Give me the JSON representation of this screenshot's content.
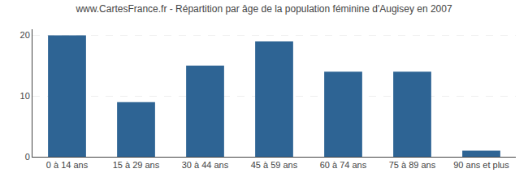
{
  "chart_data": {
    "type": "bar",
    "title": "www.CartesFrance.fr - Répartition par âge de la population féminine d'Augisey en 2007",
    "categories": [
      "0 à 14 ans",
      "15 à 29 ans",
      "30 à 44 ans",
      "45 à 59 ans",
      "60 à 74 ans",
      "75 à 89 ans",
      "90 ans et plus"
    ],
    "values": [
      20,
      9,
      15,
      19,
      14,
      14,
      1
    ],
    "color": "#2e6494",
    "ylim": [
      0,
      21
    ],
    "yticks": [
      0,
      10,
      20
    ],
    "grid": true
  }
}
